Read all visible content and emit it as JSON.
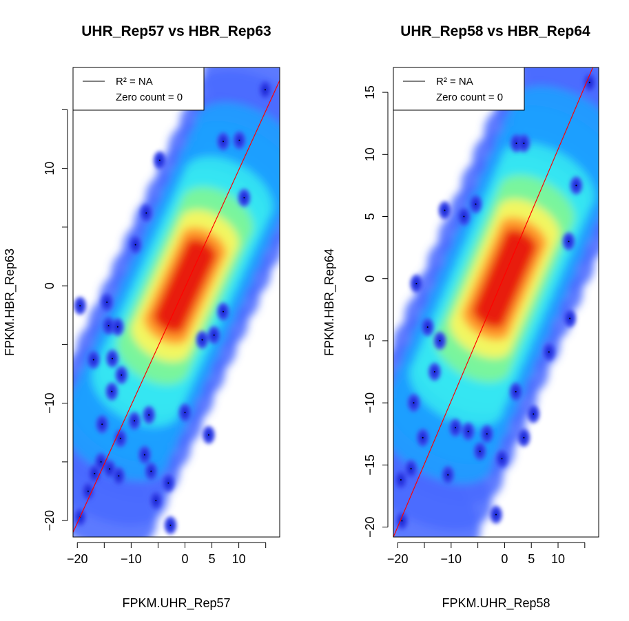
{
  "chart_data": [
    {
      "type": "scatter",
      "title": "UHR_Rep57 vs HBR_Rep63",
      "xlabel": "FPKM.UHR_Rep57",
      "ylabel": "FPKM.HBR_Rep63",
      "xlim": [
        -20.8,
        17.6
      ],
      "ylim": [
        -21.4,
        18.6
      ],
      "x_ticks": [
        -20,
        -10,
        0,
        5,
        10
      ],
      "x_tick_marks": [
        -20,
        -15,
        -10,
        -5,
        0,
        5,
        10,
        15
      ],
      "y_ticks": [
        -20,
        -10,
        0,
        10
      ],
      "y_tick_marks": [
        -20,
        -15,
        -10,
        -5,
        0,
        5,
        10,
        15
      ],
      "legend": {
        "position": "top-left",
        "entries": [
          "R² = NA",
          "Zero count = 0"
        ]
      },
      "fit_line": {
        "color": "#ff0000",
        "x": [
          -20.8,
          17.6
        ],
        "y": [
          -21.0,
          17.5
        ]
      },
      "density": {
        "style": "smoothScatter",
        "center": [
          0,
          0
        ],
        "core_slope": 1.0
      },
      "outlier_points": [
        {
          "x": -19.5,
          "y": -1.7
        },
        {
          "x": -17,
          "y": -6.3
        },
        {
          "x": -14.5,
          "y": -1.4
        },
        {
          "x": -14.2,
          "y": -3.4
        },
        {
          "x": -13.5,
          "y": -6.2
        },
        {
          "x": -13.6,
          "y": -9.0
        },
        {
          "x": -12.5,
          "y": -3.5
        },
        {
          "x": -11.8,
          "y": -7.6
        },
        {
          "x": -15.4,
          "y": -11.8
        },
        {
          "x": -15.6,
          "y": -15.0
        },
        {
          "x": -16.8,
          "y": -16.0
        },
        {
          "x": -18.0,
          "y": -17.5
        },
        {
          "x": -14.0,
          "y": -15.6
        },
        {
          "x": -12.0,
          "y": -13.0
        },
        {
          "x": -12.3,
          "y": -16.2
        },
        {
          "x": -19.5,
          "y": -19.7
        },
        {
          "x": -9.4,
          "y": -11.5
        },
        {
          "x": -7.5,
          "y": -14.4
        },
        {
          "x": -6.3,
          "y": -15.8
        },
        {
          "x": -5.4,
          "y": -18.3
        },
        {
          "x": -3.1,
          "y": -16.8
        },
        {
          "x": -2.7,
          "y": -20.4
        },
        {
          "x": -6.7,
          "y": -11.0
        },
        {
          "x": 0.0,
          "y": -10.8
        },
        {
          "x": 4.4,
          "y": -12.7
        },
        {
          "x": 3.2,
          "y": -4.6
        },
        {
          "x": 5.4,
          "y": -4.2
        },
        {
          "x": 7.1,
          "y": -2.2
        },
        {
          "x": -4.7,
          "y": 10.7
        },
        {
          "x": -7.2,
          "y": 6.2
        },
        {
          "x": -9.2,
          "y": 3.5
        },
        {
          "x": 7.1,
          "y": 12.3
        },
        {
          "x": 10.1,
          "y": 12.4
        },
        {
          "x": 14.9,
          "y": 16.7
        },
        {
          "x": 11.0,
          "y": 7.5
        }
      ]
    },
    {
      "type": "scatter",
      "title": "UHR_Rep58 vs HBR_Rep64",
      "xlabel": "FPKM.UHR_Rep58",
      "ylabel": "FPKM.HBR_Rep64",
      "xlim": [
        -20.8,
        17.6
      ],
      "ylim": [
        -20.8,
        17.0
      ],
      "x_ticks": [
        -20,
        -10,
        0,
        5,
        10
      ],
      "x_tick_marks": [
        -20,
        -15,
        -10,
        -5,
        0,
        5,
        10,
        15
      ],
      "y_ticks": [
        -20,
        -15,
        -10,
        -5,
        0,
        5,
        10,
        15
      ],
      "y_tick_marks": [
        -20,
        -15,
        -10,
        -5,
        0,
        5,
        10,
        15
      ],
      "legend": {
        "position": "top-left",
        "entries": [
          "R² = NA",
          "Zero count = 0"
        ]
      },
      "fit_line": {
        "color": "#ff0000",
        "x": [
          -20.8,
          16.5
        ],
        "y": [
          -20.8,
          17.0
        ]
      },
      "density": {
        "style": "smoothScatter",
        "center": [
          0,
          0
        ],
        "core_slope": 1.0
      },
      "outlier_points": [
        {
          "x": -16.5,
          "y": -0.4
        },
        {
          "x": -14.4,
          "y": -3.9
        },
        {
          "x": -12.1,
          "y": -5.0
        },
        {
          "x": -13.1,
          "y": -7.5
        },
        {
          "x": -17.0,
          "y": -10.0
        },
        {
          "x": -15.3,
          "y": -12.8
        },
        {
          "x": -17.5,
          "y": -15.3
        },
        {
          "x": -19.4,
          "y": -16.2
        },
        {
          "x": -19.2,
          "y": -19.5
        },
        {
          "x": -10.6,
          "y": -15.8
        },
        {
          "x": -9.2,
          "y": -12.0
        },
        {
          "x": -6.8,
          "y": -12.3
        },
        {
          "x": -4.6,
          "y": -13.9
        },
        {
          "x": -3.3,
          "y": -12.5
        },
        {
          "x": -0.5,
          "y": -14.5
        },
        {
          "x": -1.6,
          "y": -19.0
        },
        {
          "x": 3.6,
          "y": -12.8
        },
        {
          "x": 5.4,
          "y": -10.9
        },
        {
          "x": 2.1,
          "y": -9.1
        },
        {
          "x": 8.3,
          "y": -5.9
        },
        {
          "x": 12.2,
          "y": -3.2
        },
        {
          "x": -11.2,
          "y": 5.5
        },
        {
          "x": -7.6,
          "y": 5.0
        },
        {
          "x": -5.4,
          "y": 6.0
        },
        {
          "x": 2.2,
          "y": 10.9
        },
        {
          "x": 3.6,
          "y": 10.9
        },
        {
          "x": 12.0,
          "y": 3.0
        },
        {
          "x": 13.4,
          "y": 7.5
        },
        {
          "x": 15.9,
          "y": 15.8
        }
      ]
    }
  ]
}
